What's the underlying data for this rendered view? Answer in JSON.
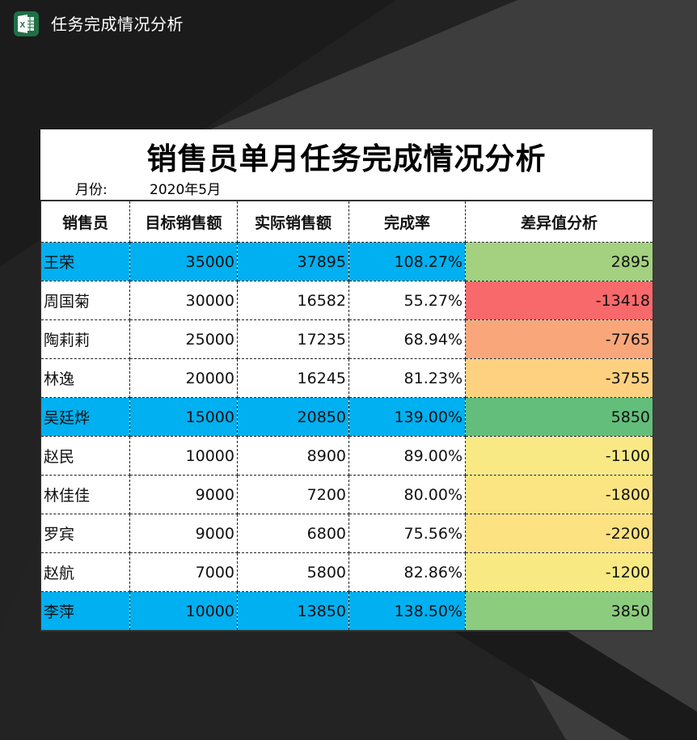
{
  "app": {
    "icon": "excel-icon",
    "title": "任务完成情况分析"
  },
  "sheet": {
    "title": "销售员单月任务完成情况分析",
    "month_label": "月份:",
    "month_value": "2020年5月",
    "columns": [
      "销售员",
      "目标销售额",
      "实际销售额",
      "完成率",
      "差异值分析"
    ],
    "rows": [
      {
        "name": "王荣",
        "target": "35000",
        "actual": "37895",
        "rate": "108.27%",
        "diff": "2895",
        "highlight": true,
        "diff_color": "#a3d17f"
      },
      {
        "name": "周国菊",
        "target": "30000",
        "actual": "16582",
        "rate": "55.27%",
        "diff": "-13418",
        "highlight": false,
        "diff_color": "#f8696b"
      },
      {
        "name": "陶莉莉",
        "target": "25000",
        "actual": "17235",
        "rate": "68.94%",
        "diff": "-7765",
        "highlight": false,
        "diff_color": "#f9a77a"
      },
      {
        "name": "林逸",
        "target": "20000",
        "actual": "16245",
        "rate": "81.23%",
        "diff": "-3755",
        "highlight": false,
        "diff_color": "#fdd17f"
      },
      {
        "name": "吴廷烨",
        "target": "15000",
        "actual": "20850",
        "rate": "139.00%",
        "diff": "5850",
        "highlight": true,
        "diff_color": "#63be7b"
      },
      {
        "name": "赵民",
        "target": "10000",
        "actual": "8900",
        "rate": "89.00%",
        "diff": "-1100",
        "highlight": false,
        "diff_color": "#f8e984"
      },
      {
        "name": "林佳佳",
        "target": "9000",
        "actual": "7200",
        "rate": "80.00%",
        "diff": "-1800",
        "highlight": false,
        "diff_color": "#fbe582"
      },
      {
        "name": "罗宾",
        "target": "9000",
        "actual": "6800",
        "rate": "75.56%",
        "diff": "-2200",
        "highlight": false,
        "diff_color": "#fde281"
      },
      {
        "name": "赵航",
        "target": "7000",
        "actual": "5800",
        "rate": "82.86%",
        "diff": "-1200",
        "highlight": false,
        "diff_color": "#f9e983"
      },
      {
        "name": "李萍",
        "target": "10000",
        "actual": "13850",
        "rate": "138.50%",
        "diff": "3850",
        "highlight": true,
        "diff_color": "#8ccc7e"
      }
    ]
  },
  "colors": {
    "highlight_blue": "#00b0f0",
    "background": "#1b1b1b",
    "excel_green": "#1e7145"
  }
}
